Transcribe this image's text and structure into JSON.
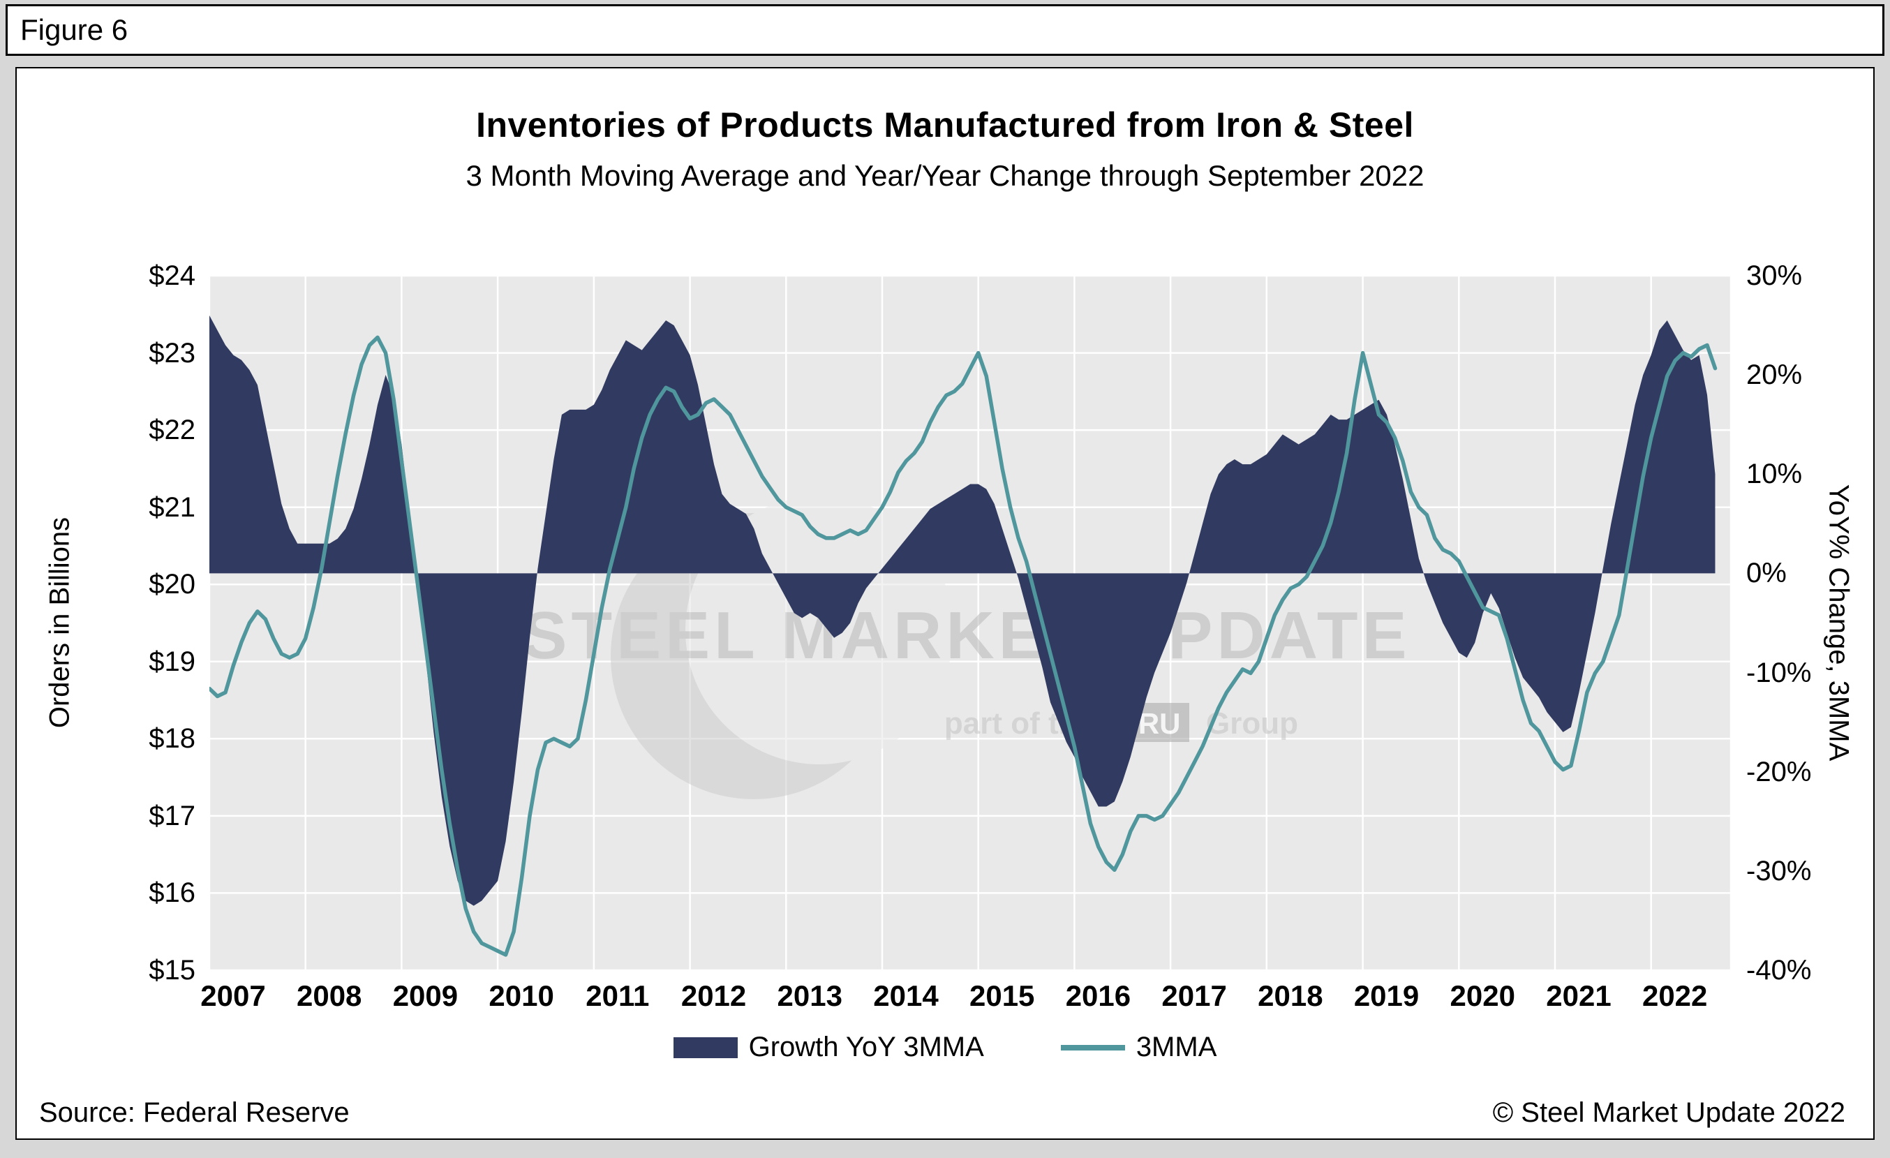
{
  "figure_label": "Figure 6",
  "title": "Inventories of Products Manufactured from Iron & Steel",
  "subtitle": "3 Month Moving Average and Year/Year Change through September 2022",
  "source": "Source: Federal Reserve",
  "copyright": "© Steel Market Update 2022",
  "watermark": {
    "line1": "STEEL MARKET UPDATE",
    "line2_prefix": "part of the",
    "line2_badge": "CRU",
    "line2_suffix": "Group"
  },
  "axes": {
    "left_title": "Orders in Billions",
    "right_title": "YoY% Change, 3MMA",
    "left_ticks": [
      "$24",
      "$23",
      "$22",
      "$21",
      "$20",
      "$19",
      "$18",
      "$17",
      "$16",
      "$15"
    ],
    "right_ticks": [
      "30%",
      "20%",
      "10%",
      "0%",
      "-10%",
      "-20%",
      "-30%",
      "-40%"
    ],
    "x_ticks": [
      "2007",
      "2008",
      "2009",
      "2010",
      "2011",
      "2012",
      "2013",
      "2014",
      "2015",
      "2016",
      "2017",
      "2018",
      "2019",
      "2020",
      "2021",
      "2022"
    ]
  },
  "legend": [
    {
      "label": "Growth YoY 3MMA",
      "type": "area",
      "color": "#313a60"
    },
    {
      "label": "3MMA",
      "type": "line",
      "color": "#4f969d"
    }
  ],
  "chart_data": {
    "type": "combo",
    "title": "Inventories of Products Manufactured from Iron & Steel",
    "subtitle": "3 Month Moving Average and Year/Year Change through September 2022",
    "plot_bg": "#e9e9e9",
    "grid_color": "#ffffff",
    "x_min": 2007.0,
    "x_max": 2022.83,
    "x_step_months": 1,
    "x_start": "2007-01",
    "x_end": "2022-09",
    "left_axis": {
      "label": "Orders in Billions",
      "unit": "$B",
      "range": [
        15,
        24
      ],
      "tick_step": 1
    },
    "right_axis": {
      "label": "YoY% Change, 3MMA",
      "unit": "%",
      "range": [
        -40,
        30
      ],
      "tick_step": 10
    },
    "series": [
      {
        "name": "Growth YoY 3MMA",
        "type": "area",
        "axis": "right",
        "color": "#313a60",
        "values": [
          26,
          24.5,
          23,
          22,
          21.5,
          20.5,
          19,
          15,
          11,
          7,
          4.5,
          3,
          3,
          3,
          3,
          3,
          3.5,
          4.5,
          6.5,
          9.5,
          13,
          17,
          20,
          18,
          13,
          6,
          -1,
          -8.5,
          -16,
          -22.5,
          -27.5,
          -31,
          -33,
          -33.5,
          -33,
          -32,
          -31,
          -27,
          -21,
          -14,
          -6.5,
          0.5,
          6,
          11.5,
          16,
          16.5,
          16.5,
          16.5,
          17,
          18.5,
          20.5,
          22,
          23.5,
          23,
          22.5,
          23.5,
          24.5,
          25.5,
          25,
          23.5,
          22,
          19,
          15,
          11,
          8,
          7,
          6.5,
          6,
          4.5,
          2,
          0.5,
          -1,
          -2.5,
          -4,
          -4.5,
          -4,
          -4.5,
          -5.5,
          -6.5,
          -6,
          -5,
          -3,
          -1.5,
          -0.5,
          0.5,
          1.5,
          2.5,
          3.5,
          4.5,
          5.5,
          6.5,
          7,
          7.5,
          8,
          8.5,
          9,
          9,
          8.5,
          7,
          4.5,
          2,
          -0.5,
          -3.5,
          -6.5,
          -9.5,
          -13,
          -15,
          -17,
          -18.5,
          -20.5,
          -22,
          -23.5,
          -23.5,
          -23,
          -21,
          -18.5,
          -15.5,
          -12.5,
          -10,
          -8,
          -6,
          -3.5,
          -1,
          2,
          5,
          8,
          10,
          11,
          11.5,
          11,
          11,
          11.5,
          12,
          13,
          14,
          13.5,
          13,
          13.5,
          14,
          15,
          16,
          15.5,
          15.5,
          16,
          16.5,
          17,
          17.5,
          16,
          13,
          9.5,
          5.5,
          1.5,
          -1,
          -3,
          -5,
          -6.5,
          -8,
          -8.5,
          -7,
          -4,
          -2,
          -3.5,
          -6,
          -8.5,
          -10.5,
          -11.5,
          -12.5,
          -14,
          -15,
          -16,
          -15.5,
          -12,
          -8,
          -4,
          0.5,
          5,
          9,
          13,
          17,
          20,
          22,
          24.5,
          25.5,
          24,
          22.5,
          21.5,
          22,
          18,
          10
        ]
      },
      {
        "name": "3MMA",
        "type": "line",
        "axis": "left",
        "color": "#4f969d",
        "values": [
          18.65,
          18.55,
          18.6,
          18.95,
          19.25,
          19.5,
          19.65,
          19.55,
          19.3,
          19.1,
          19.05,
          19.1,
          19.3,
          19.7,
          20.2,
          20.8,
          21.4,
          21.95,
          22.45,
          22.85,
          23.1,
          23.2,
          23,
          22.4,
          21.6,
          20.8,
          20,
          19.2,
          18.4,
          17.6,
          16.9,
          16.3,
          15.8,
          15.5,
          15.35,
          15.3,
          15.25,
          15.2,
          15.5,
          16.2,
          17,
          17.6,
          17.95,
          18,
          17.95,
          17.9,
          18,
          18.5,
          19.1,
          19.7,
          20.2,
          20.6,
          21,
          21.5,
          21.9,
          22.2,
          22.4,
          22.55,
          22.5,
          22.3,
          22.15,
          22.2,
          22.35,
          22.4,
          22.3,
          22.2,
          22,
          21.8,
          21.6,
          21.4,
          21.25,
          21.1,
          21,
          20.95,
          20.9,
          20.75,
          20.65,
          20.6,
          20.6,
          20.65,
          20.7,
          20.65,
          20.7,
          20.85,
          21,
          21.2,
          21.45,
          21.6,
          21.7,
          21.85,
          22.1,
          22.3,
          22.45,
          22.5,
          22.6,
          22.8,
          23,
          22.7,
          22.1,
          21.5,
          21,
          20.6,
          20.3,
          19.9,
          19.5,
          19.1,
          18.7,
          18.3,
          17.9,
          17.4,
          16.9,
          16.6,
          16.4,
          16.3,
          16.5,
          16.8,
          17,
          17,
          16.95,
          17,
          17.15,
          17.3,
          17.5,
          17.7,
          17.9,
          18.15,
          18.4,
          18.6,
          18.75,
          18.9,
          18.85,
          19,
          19.3,
          19.6,
          19.8,
          19.95,
          20,
          20.1,
          20.3,
          20.5,
          20.8,
          21.2,
          21.7,
          22.4,
          23,
          22.6,
          22.2,
          22.1,
          21.9,
          21.6,
          21.2,
          21,
          20.9,
          20.6,
          20.45,
          20.4,
          20.3,
          20.1,
          19.9,
          19.7,
          19.65,
          19.6,
          19.3,
          18.9,
          18.5,
          18.2,
          18.1,
          17.9,
          17.7,
          17.6,
          17.65,
          18.1,
          18.6,
          18.85,
          19,
          19.3,
          19.6,
          20.2,
          20.8,
          21.4,
          21.9,
          22.3,
          22.7,
          22.9,
          23,
          22.95,
          23.05,
          23.1,
          22.8
        ]
      }
    ]
  }
}
